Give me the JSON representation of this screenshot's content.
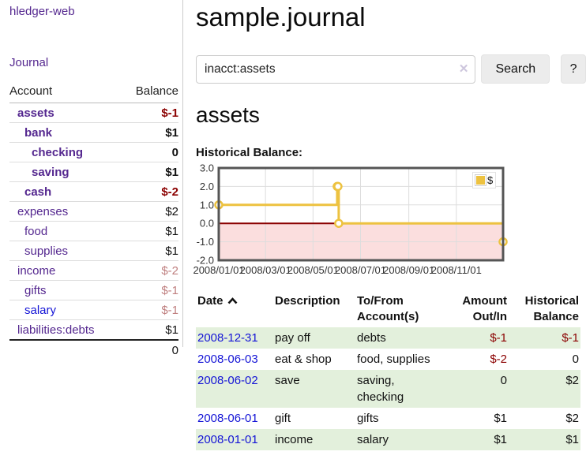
{
  "sidebar": {
    "app_title": "hledger-web",
    "journal_label": "Journal",
    "accounts_table": {
      "headers": {
        "account": "Account",
        "balance": "Balance"
      },
      "rows": [
        {
          "name": "assets",
          "balance": "$-1"
        },
        {
          "name": "bank",
          "balance": "$1"
        },
        {
          "name": "checking",
          "balance": "0"
        },
        {
          "name": "saving",
          "balance": "$1"
        },
        {
          "name": "cash",
          "balance": "$-2"
        },
        {
          "name": "expenses",
          "balance": "$2"
        },
        {
          "name": "food",
          "balance": "$1"
        },
        {
          "name": "supplies",
          "balance": "$1"
        },
        {
          "name": "income",
          "balance": "$-2"
        },
        {
          "name": "gifts",
          "balance": "$-1"
        },
        {
          "name": "salary",
          "balance": "$-1"
        },
        {
          "name": "liabilities:debts",
          "balance": "$1"
        }
      ],
      "total": "0"
    }
  },
  "main": {
    "title": "sample.journal",
    "search": {
      "value": "inacct:assets",
      "clear_icon": "✕",
      "button_label": "Search",
      "help_label": "?"
    },
    "account_heading": "assets",
    "chart_label": "Historical Balance:"
  },
  "chart_data": {
    "type": "line",
    "step": true,
    "title": "Historical Balance:",
    "series": [
      {
        "name": "$",
        "color": "#edc240",
        "points": [
          [
            "2008-01-01",
            1
          ],
          [
            "2008-06-01",
            2
          ],
          [
            "2008-06-02",
            2
          ],
          [
            "2008-06-03",
            0
          ],
          [
            "2008-12-31",
            -1
          ]
        ]
      }
    ],
    "xlim": [
      "2008-01-01",
      "2008-12-31"
    ],
    "ylim": [
      -2,
      3
    ],
    "yticks": [
      3,
      2,
      1,
      0,
      -1,
      -2
    ],
    "xticks": [
      "2008/01/01",
      "2008/03/01",
      "2008/05/01",
      "2008/07/01",
      "2008/09/01",
      "2008/11/01"
    ],
    "legend_position": "top-right",
    "grid": true,
    "negative_fill": "#fbdede",
    "zero_line_color": "#8b0000"
  },
  "register_table": {
    "headers": {
      "date": "Date",
      "description": "Description",
      "accounts": "To/From Account(s)",
      "amount": "Amount Out/In",
      "balance": "Historical Balance"
    },
    "rows": [
      {
        "date": "2008-12-31",
        "description": "pay off",
        "accounts": "debts",
        "amount": "$-1",
        "balance": "$-1"
      },
      {
        "date": "2008-06-03",
        "description": "eat & shop",
        "accounts": "food, supplies",
        "amount": "$-2",
        "balance": "0"
      },
      {
        "date": "2008-06-02",
        "description": "save",
        "accounts": "saving, checking",
        "amount": "0",
        "balance": "$2"
      },
      {
        "date": "2008-06-01",
        "description": "gift",
        "accounts": "gifts",
        "amount": "$1",
        "balance": "$2"
      },
      {
        "date": "2008-01-01",
        "description": "income",
        "accounts": "salary",
        "amount": "$1",
        "balance": "$1"
      }
    ]
  }
}
